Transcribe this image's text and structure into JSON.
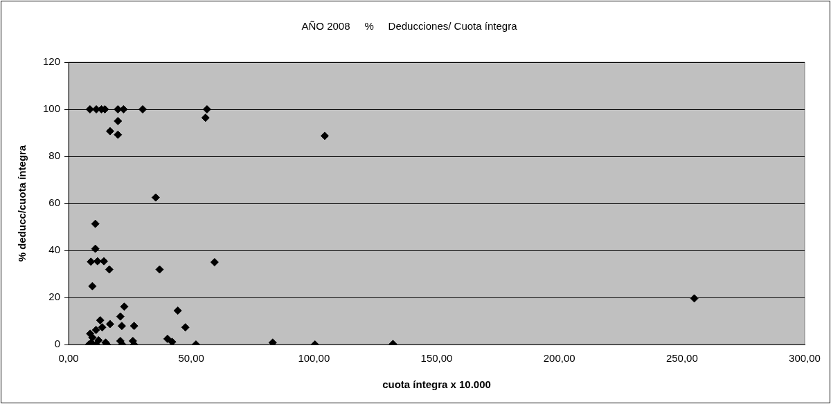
{
  "chart_data": {
    "type": "scatter",
    "title": "AÑO 2008     %     Deducciones/ Cuota íntegra",
    "xlabel": "cuota íntegra x 10.000",
    "ylabel": "% deducc/cuota íntegra",
    "series": [
      {
        "color": "#000000",
        "x": [
          8.7,
          11.3,
          13.4,
          14.8,
          20.1,
          21.8,
          22.4,
          30.2,
          56.4,
          20.1,
          16.9,
          20.1,
          55.8,
          35.5,
          10.9,
          10.9,
          9.1,
          11.8,
          14.4,
          16.6,
          37.1,
          59.5,
          9.7,
          22.7,
          44.5,
          21.1,
          12.9,
          16.9,
          21.7,
          26.7,
          47.6,
          13.7,
          11.2,
          8.8,
          9.7,
          40.3,
          42.2,
          21.1,
          26.2,
          15.1,
          9.3,
          11.2,
          21.9,
          26.7,
          51.9,
          8.3,
          12.2,
          15.6,
          83.2,
          100.4,
          104.4,
          132.2,
          255
        ],
        "values": [
          100,
          100,
          100,
          100,
          100,
          null,
          100,
          100,
          100,
          95,
          90.7,
          89.2,
          96.4,
          62.5,
          51.3,
          40.7,
          35.2,
          35.4,
          35.4,
          31.9,
          31.9,
          35,
          24.8,
          16.1,
          14.4,
          11.9,
          10.3,
          8.7,
          7.9,
          7.9,
          7.3,
          7.3,
          6.2,
          4.6,
          3,
          2.4,
          1.1,
          1.5,
          1.5,
          0.8,
          0.8,
          0,
          0,
          0,
          0,
          0,
          1.8,
          0,
          0.8,
          0,
          88.7,
          0.2,
          19.6
        ]
      }
    ],
    "xlim": [
      0,
      300
    ],
    "xticks": [
      {
        "value": 0,
        "label": "0,00"
      },
      {
        "value": 50,
        "label": "50,00"
      },
      {
        "value": 100,
        "label": "100,00"
      },
      {
        "value": 150,
        "label": "150,00"
      },
      {
        "value": 200,
        "label": "200,00"
      },
      {
        "value": 250,
        "label": "250,00"
      },
      {
        "value": 300,
        "label": "300,00"
      }
    ],
    "ylim": [
      0,
      120
    ],
    "yticks": [
      0,
      20,
      40,
      60,
      80,
      100,
      120
    ],
    "grid": "y",
    "marker": "diamond",
    "legend": false
  }
}
